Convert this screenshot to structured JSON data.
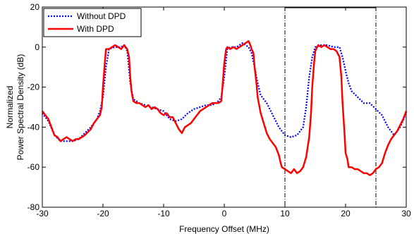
{
  "chart_data": {
    "type": "line",
    "title": "",
    "xlabel": "Frequency Offset (MHz)",
    "ylabel": [
      "Normalized",
      "Power Spectral Density (dB)"
    ],
    "xlim": [
      -30,
      30
    ],
    "ylim": [
      -80,
      20
    ],
    "xticks": [
      -30,
      -20,
      -10,
      0,
      10,
      20,
      30
    ],
    "yticks": [
      -80,
      -60,
      -40,
      -20,
      0,
      20
    ],
    "grid": false,
    "legend": "top-left",
    "vlines": [
      10,
      25
    ],
    "series": [
      {
        "name": "Without DPD",
        "color": "#0000ff",
        "style": "dotted",
        "x": [
          -30,
          -29,
          -28,
          -27,
          -26,
          -25,
          -24,
          -23,
          -22,
          -21,
          -20.5,
          -20,
          -19.5,
          -19,
          -18,
          -17,
          -16.5,
          -16,
          -15.5,
          -15,
          -14,
          -13,
          -12,
          -11,
          -10,
          -9,
          -8,
          -7,
          -6,
          -5,
          -4,
          -3,
          -2,
          -1,
          -0.5,
          0,
          0.5,
          1,
          2,
          3,
          3.5,
          4,
          4.5,
          5,
          5.5,
          6,
          7,
          8,
          9,
          10,
          11,
          12,
          13,
          13.5,
          14,
          14.5,
          15,
          16,
          17,
          18,
          19,
          19.5,
          20,
          20.5,
          21,
          22,
          23,
          24,
          25,
          26,
          27,
          28,
          29,
          30
        ],
        "y": [
          -33,
          -37,
          -44,
          -47,
          -47,
          -47,
          -46,
          -43,
          -40,
          -36,
          -32,
          -25,
          -10,
          -1,
          0,
          0,
          1,
          -2,
          -18,
          -26,
          -28,
          -29,
          -30,
          -31,
          -32,
          -36,
          -37,
          -36,
          -33,
          -31,
          -30,
          -29,
          -29,
          -27,
          -25,
          -15,
          -1,
          0,
          0,
          2,
          1,
          0,
          -3,
          -10,
          -18,
          -24,
          -28,
          -34,
          -40,
          -44,
          -45,
          -44,
          -40,
          -30,
          -15,
          -5,
          0,
          1,
          1,
          0,
          0,
          -5,
          -12,
          -18,
          -22,
          -25,
          -28,
          -28,
          -31,
          -34,
          -40,
          -44,
          -40,
          -33
        ]
      },
      {
        "name": "With DPD",
        "color": "#ff0000",
        "style": "solid",
        "x": [
          -30,
          -29.5,
          -29,
          -28.5,
          -28,
          -27.5,
          -27,
          -26.5,
          -26,
          -25.5,
          -25,
          -24.5,
          -24,
          -23,
          -22,
          -21.5,
          -21,
          -20.5,
          -20.2,
          -20,
          -19.7,
          -19.5,
          -19,
          -18.5,
          -18,
          -17.5,
          -17,
          -16.5,
          -16,
          -15.7,
          -15.5,
          -15.3,
          -15,
          -14.5,
          -14,
          -13.5,
          -13,
          -12.5,
          -12,
          -11.5,
          -11,
          -10.5,
          -10,
          -9.5,
          -9,
          -8.5,
          -8,
          -7.5,
          -7,
          -6.5,
          -6,
          -5.5,
          -5,
          -4.5,
          -4,
          -3.5,
          -3,
          -2.5,
          -2,
          -1.5,
          -1,
          -0.5,
          -0.3,
          0,
          0.3,
          0.5,
          1,
          1.5,
          2,
          2.5,
          3,
          3.5,
          4,
          4.3,
          4.5,
          4.8,
          5,
          5.3,
          5.5,
          6,
          6.5,
          7,
          7.5,
          8,
          8.5,
          9,
          9.3,
          9.5,
          10,
          10.5,
          11,
          11.5,
          12,
          12.5,
          13,
          13.5,
          14,
          14.3,
          14.5,
          14.8,
          15,
          15.3,
          15.5,
          16,
          16.5,
          17,
          17.5,
          18,
          18.5,
          19,
          19.3,
          19.5,
          19.8,
          20,
          20.3,
          20.5,
          21,
          21.5,
          22,
          22.5,
          23,
          23.5,
          24,
          24.5,
          25,
          25.5,
          26,
          26.5,
          27,
          27.5,
          28,
          28.5,
          29,
          29.5,
          30
        ],
        "y": [
          -32,
          -34,
          -36,
          -40,
          -44,
          -45,
          -47,
          -46,
          -45,
          -46,
          -47,
          -46,
          -46,
          -44,
          -41,
          -38,
          -36,
          -34,
          -30,
          -20,
          -8,
          -1,
          -1,
          0,
          1,
          0,
          -1,
          1,
          -1,
          -5,
          -15,
          -22,
          -27,
          -28,
          -28,
          -29,
          -30,
          -29,
          -31,
          -30,
          -31,
          -33,
          -34,
          -33,
          -35,
          -35,
          -38,
          -41,
          -43,
          -40,
          -39,
          -38,
          -36,
          -34,
          -32,
          -31,
          -30,
          -29,
          -28,
          -28,
          -28,
          -27,
          -20,
          -8,
          -1,
          0,
          -1,
          0,
          -1,
          0,
          1,
          2,
          3,
          1,
          -1,
          -3,
          -10,
          -18,
          -25,
          -33,
          -38,
          -43,
          -46,
          -48,
          -50,
          -54,
          -58,
          -60,
          -61,
          -62,
          -63,
          -61,
          -63,
          -62,
          -60,
          -55,
          -45,
          -33,
          -20,
          -8,
          -2,
          0,
          1,
          0,
          1,
          0,
          -1,
          -1,
          -2,
          -5,
          -15,
          -28,
          -42,
          -53,
          -56,
          -60,
          -60,
          -61,
          -61,
          -62,
          -63,
          -63,
          -64,
          -63,
          -61,
          -60,
          -58,
          -53,
          -49,
          -46,
          -44,
          -42,
          -39,
          -36,
          -32
        ]
      }
    ]
  }
}
